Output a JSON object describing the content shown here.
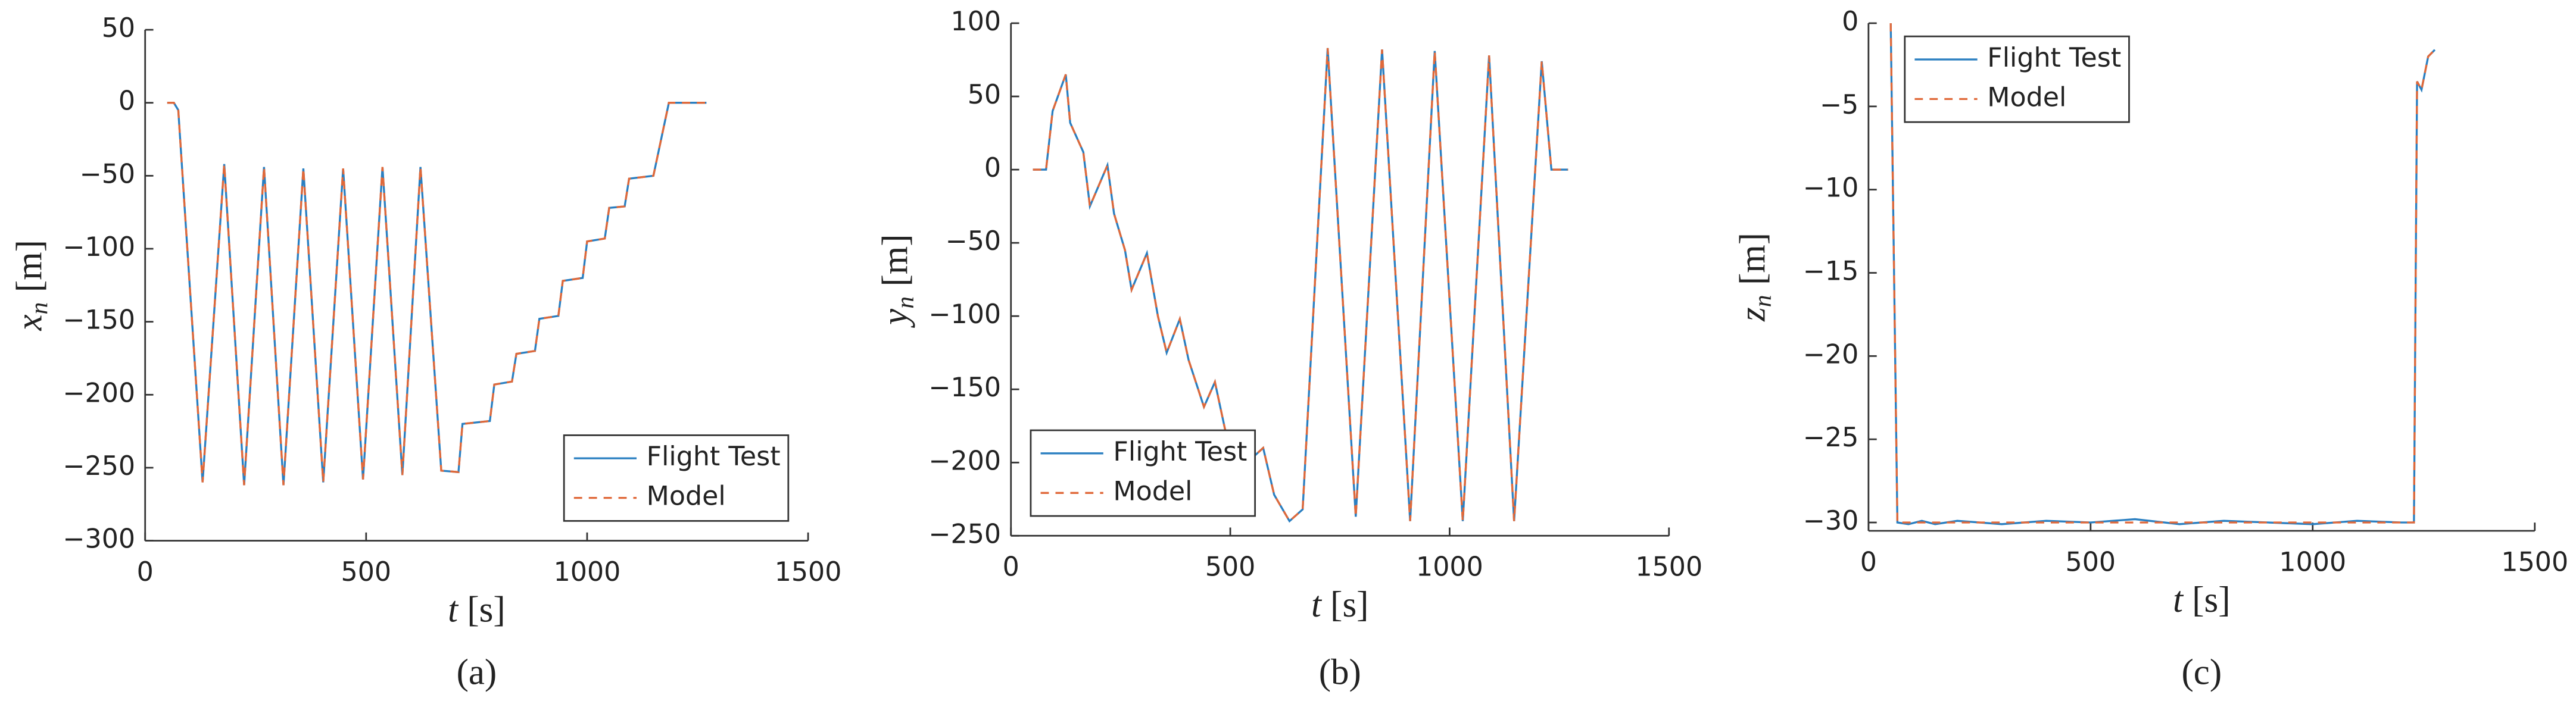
{
  "chart_data": [
    {
      "type": "line",
      "label": "(a)",
      "xlabel": {
        "symbol": "t",
        "unit": "[s]"
      },
      "ylabel": {
        "symbol": "x",
        "subscript": "n",
        "unit": "[m]"
      },
      "xlim": [
        0,
        1500
      ],
      "xticks": [
        0,
        500,
        1000,
        1500
      ],
      "ylim": [
        -300,
        50
      ],
      "yticks": [
        {
          "value": -300,
          "label": "−300"
        },
        {
          "value": -250,
          "label": "−250"
        },
        {
          "value": -200,
          "label": "−200"
        },
        {
          "value": -150,
          "label": "−150"
        },
        {
          "value": -100,
          "label": "−100"
        },
        {
          "value": -50,
          "label": "−50"
        },
        0,
        50
      ],
      "legend": "lower right",
      "x": [
        50,
        65,
        75,
        130,
        179,
        224,
        269,
        313,
        358,
        403,
        448,
        493,
        537,
        582,
        623,
        670,
        709,
        718,
        780,
        790,
        830,
        840,
        882,
        892,
        935,
        945,
        990,
        1000,
        1040,
        1050,
        1085,
        1095,
        1150,
        1185,
        1270
      ],
      "series": [
        {
          "name": "Flight Test",
          "color": "#2a7fc1",
          "style": "solid",
          "values": [
            0,
            0,
            -5,
            -260,
            -42,
            -262,
            -44,
            -262,
            -45,
            -260,
            -45,
            -258,
            -44,
            -255,
            -44,
            -252,
            -253,
            -220,
            -218,
            -193,
            -191,
            -172,
            -170,
            -148,
            -146,
            -122,
            -120,
            -95,
            -93,
            -72,
            -71,
            -52,
            -50,
            0,
            0
          ]
        },
        {
          "name": "Model",
          "color": "#e0693a",
          "style": "dashed",
          "values": [
            0,
            0,
            -5,
            -260,
            -42,
            -262,
            -44,
            -262,
            -45,
            -260,
            -45,
            -258,
            -44,
            -255,
            -44,
            -252,
            -253,
            -220,
            -218,
            -193,
            -191,
            -172,
            -170,
            -148,
            -146,
            -122,
            -120,
            -95,
            -93,
            -72,
            -71,
            -52,
            -50,
            0,
            0
          ]
        }
      ]
    },
    {
      "type": "line",
      "label": "(b)",
      "xlabel": {
        "symbol": "t",
        "unit": "[s]"
      },
      "ylabel": {
        "symbol": "y",
        "subscript": "n",
        "unit": "[m]"
      },
      "xlim": [
        0,
        1500
      ],
      "xticks": [
        0,
        500,
        1000,
        1500
      ],
      "ylim": [
        -250,
        100
      ],
      "yticks": [
        {
          "value": -250,
          "label": "−250"
        },
        {
          "value": -200,
          "label": "−200"
        },
        {
          "value": -150,
          "label": "−150"
        },
        {
          "value": -100,
          "label": "−100"
        },
        {
          "value": -50,
          "label": "−50"
        },
        0,
        50,
        100
      ],
      "legend": "lower left",
      "x": [
        50,
        80,
        95,
        125,
        135,
        165,
        180,
        220,
        235,
        260,
        275,
        310,
        335,
        355,
        385,
        405,
        440,
        465,
        490,
        520,
        575,
        600,
        635,
        665,
        722,
        786,
        846,
        910,
        966,
        1030,
        1090,
        1147,
        1210,
        1232,
        1270
      ],
      "series": [
        {
          "name": "Flight Test",
          "color": "#2a7fc1",
          "style": "solid",
          "values": [
            0,
            0,
            40,
            65,
            32,
            12,
            -25,
            3,
            -30,
            -55,
            -82,
            -57,
            -100,
            -125,
            -102,
            -130,
            -162,
            -145,
            -180,
            -205,
            -190,
            -222,
            -240,
            -232,
            83,
            -237,
            82,
            -240,
            81,
            -240,
            78,
            -240,
            74,
            0,
            0
          ]
        },
        {
          "name": "Model",
          "color": "#e0693a",
          "style": "dashed",
          "values": [
            0,
            0,
            40,
            65,
            32,
            12,
            -25,
            3,
            -30,
            -55,
            -82,
            -57,
            -100,
            -125,
            -102,
            -130,
            -162,
            -145,
            -180,
            -205,
            -190,
            -222,
            -240,
            -232,
            83,
            -237,
            82,
            -240,
            81,
            -240,
            78,
            -240,
            74,
            0,
            0
          ]
        }
      ]
    },
    {
      "type": "line",
      "label": "(c)",
      "xlabel": {
        "symbol": "t",
        "unit": "[s]"
      },
      "ylabel": {
        "symbol": "z",
        "subscript": "n",
        "unit": "[m]"
      },
      "xlim": [
        0,
        1500
      ],
      "xticks": [
        0,
        500,
        1000,
        1500
      ],
      "ylim": [
        -30.5,
        0
      ],
      "yticks": [
        {
          "value": -30,
          "label": "−30"
        },
        {
          "value": -25,
          "label": "−25"
        },
        {
          "value": -20,
          "label": "−20"
        },
        {
          "value": -15,
          "label": "−15"
        },
        {
          "value": -10,
          "label": "−10"
        },
        {
          "value": -5,
          "label": "−5"
        },
        0
      ],
      "legend": "upper left",
      "x": [
        50,
        65,
        90,
        120,
        150,
        200,
        300,
        400,
        500,
        600,
        700,
        800,
        900,
        1000,
        1100,
        1200,
        1228,
        1235,
        1245,
        1260,
        1275
      ],
      "series": [
        {
          "name": "Flight Test",
          "color": "#2a7fc1",
          "style": "solid",
          "values": [
            0,
            -30,
            -30.1,
            -29.9,
            -30.1,
            -29.9,
            -30.1,
            -29.9,
            -30,
            -29.8,
            -30.1,
            -29.9,
            -30,
            -30.1,
            -29.9,
            -30,
            -30,
            -3.5,
            -4,
            -2,
            -1.6
          ]
        },
        {
          "name": "Model",
          "color": "#e0693a",
          "style": "dashed",
          "values": [
            0,
            -30,
            -30,
            -30,
            -30,
            -30,
            -30,
            -30,
            -30,
            -30,
            -30,
            -30,
            -30,
            -30,
            -30,
            -30,
            -30,
            -3.5,
            -4,
            -2,
            -1.6
          ]
        }
      ]
    }
  ]
}
